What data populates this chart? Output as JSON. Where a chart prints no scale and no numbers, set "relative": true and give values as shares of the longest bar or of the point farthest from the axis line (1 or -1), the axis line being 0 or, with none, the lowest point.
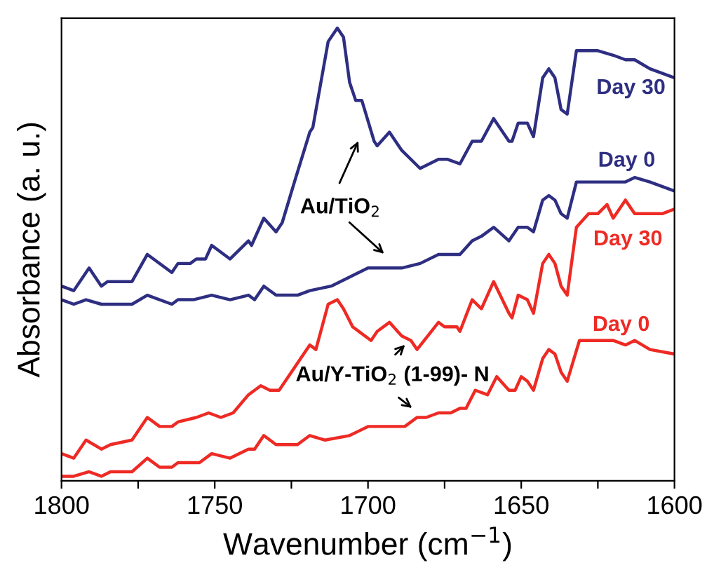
{
  "chart_data": {
    "type": "line",
    "relative": true,
    "xlabel": "Wavenumber (cm$^{−1}$)",
    "ylabel": "Absorbance (a. u.)",
    "xlim": [
      1800,
      1600
    ],
    "xticks": [
      1800,
      {
        "value": 1775,
        "label": null
      },
      1750,
      {
        "value": 1725,
        "label": null
      },
      1700,
      {
        "value": 1675,
        "label": null
      },
      1650,
      {
        "value": 1625,
        "label": null
      },
      1600
    ],
    "tick_labels": "x",
    "grid": false,
    "legend": false,
    "marker": "none",
    "line_style": "solid",
    "annotations": [
      "Au/TiO$_{2}$",
      "Au/Y-TiO$_{2}$ (1-99)- N"
    ],
    "series": [
      {
        "name": "Day 30",
        "color": "#2e2e82",
        "x": [
          1800,
          1796,
          1791,
          1787,
          1785,
          1777,
          1772,
          1764,
          1762,
          1758,
          1756,
          1753,
          1751,
          1745,
          1739,
          1738,
          1734,
          1730,
          1728,
          1724,
          1719,
          1718,
          1713,
          1710,
          1708,
          1706,
          1704,
          1702,
          1698,
          1697,
          1693,
          1689,
          1683,
          1680,
          1677,
          1674,
          1670,
          1666,
          1663,
          1659,
          1654,
          1653,
          1651,
          1648,
          1646,
          1643,
          1641,
          1639,
          1637,
          1635,
          1632,
          1629,
          1625,
          1620,
          1616,
          1613,
          1608,
          1600
        ],
        "values": [
          0.43,
          0.42,
          0.47,
          0.43,
          0.44,
          0.44,
          0.5,
          0.46,
          0.48,
          0.48,
          0.49,
          0.49,
          0.52,
          0.49,
          0.53,
          0.52,
          0.58,
          0.55,
          0.57,
          0.66,
          0.77,
          0.78,
          0.97,
          1.0,
          0.98,
          0.88,
          0.84,
          0.84,
          0.75,
          0.74,
          0.77,
          0.73,
          0.69,
          0.7,
          0.71,
          0.71,
          0.7,
          0.75,
          0.75,
          0.8,
          0.75,
          0.75,
          0.79,
          0.79,
          0.76,
          0.89,
          0.91,
          0.89,
          0.82,
          0.81,
          0.95,
          0.95,
          0.95,
          0.94,
          0.93,
          0.93,
          0.91,
          0.89
        ]
      },
      {
        "name": "Day 0",
        "color": "#2e2e82",
        "x": [
          1800,
          1796,
          1792,
          1787,
          1785,
          1777,
          1772,
          1764,
          1762,
          1757,
          1751,
          1745,
          1739,
          1737,
          1734,
          1730,
          1723,
          1719,
          1712,
          1706,
          1700,
          1695,
          1689,
          1683,
          1677,
          1670,
          1666,
          1663,
          1659,
          1654,
          1653,
          1651,
          1648,
          1646,
          1643,
          1641,
          1639,
          1637,
          1635,
          1632,
          1625,
          1619,
          1616,
          1613,
          1608,
          1600
        ],
        "values": [
          0.4,
          0.39,
          0.4,
          0.39,
          0.39,
          0.39,
          0.41,
          0.39,
          0.4,
          0.4,
          0.41,
          0.4,
          0.41,
          0.4,
          0.43,
          0.41,
          0.41,
          0.42,
          0.43,
          0.45,
          0.47,
          0.47,
          0.47,
          0.48,
          0.5,
          0.5,
          0.53,
          0.54,
          0.56,
          0.53,
          0.54,
          0.56,
          0.56,
          0.55,
          0.62,
          0.63,
          0.62,
          0.59,
          0.58,
          0.66,
          0.66,
          0.66,
          0.66,
          0.67,
          0.66,
          0.64
        ]
      },
      {
        "name": "Day 30",
        "color": "#ee2a24",
        "x": [
          1800,
          1796,
          1792,
          1787,
          1784,
          1777,
          1772,
          1768,
          1764,
          1762,
          1756,
          1752,
          1748,
          1744,
          1739,
          1735,
          1732,
          1729,
          1724,
          1719,
          1717,
          1713,
          1710,
          1708,
          1705,
          1701,
          1699,
          1697,
          1693,
          1689,
          1686,
          1684,
          1677,
          1675,
          1671,
          1670,
          1666,
          1663,
          1659,
          1654,
          1653,
          1651,
          1648,
          1646,
          1643,
          1641,
          1639,
          1637,
          1635,
          1632,
          1628,
          1625,
          1622,
          1620,
          1616,
          1613,
          1608,
          1604,
          1600
        ],
        "values": [
          0.06,
          0.05,
          0.09,
          0.07,
          0.08,
          0.09,
          0.14,
          0.12,
          0.12,
          0.13,
          0.14,
          0.15,
          0.14,
          0.15,
          0.19,
          0.21,
          0.2,
          0.2,
          0.25,
          0.3,
          0.29,
          0.39,
          0.4,
          0.38,
          0.34,
          0.32,
          0.31,
          0.33,
          0.35,
          0.32,
          0.31,
          0.29,
          0.35,
          0.34,
          0.34,
          0.33,
          0.4,
          0.38,
          0.44,
          0.37,
          0.36,
          0.41,
          0.4,
          0.37,
          0.48,
          0.5,
          0.48,
          0.43,
          0.41,
          0.56,
          0.59,
          0.59,
          0.61,
          0.58,
          0.62,
          0.59,
          0.59,
          0.59,
          0.6
        ]
      },
      {
        "name": "Day 0",
        "color": "#ee2a24",
        "x": [
          1800,
          1796,
          1791,
          1787,
          1784,
          1777,
          1772,
          1768,
          1764,
          1762,
          1755,
          1751,
          1745,
          1739,
          1737,
          1734,
          1730,
          1723,
          1719,
          1714,
          1706,
          1700,
          1697,
          1693,
          1688,
          1684,
          1681,
          1677,
          1673,
          1670,
          1668,
          1665,
          1661,
          1658,
          1654,
          1652,
          1650,
          1648,
          1646,
          1643,
          1641,
          1639,
          1637,
          1635,
          1631,
          1627,
          1620,
          1616,
          1613,
          1608,
          1600
        ],
        "values": [
          0.01,
          0.01,
          0.02,
          0.01,
          0.02,
          0.02,
          0.05,
          0.03,
          0.03,
          0.04,
          0.04,
          0.06,
          0.05,
          0.07,
          0.07,
          0.1,
          0.08,
          0.08,
          0.1,
          0.09,
          0.1,
          0.12,
          0.12,
          0.12,
          0.12,
          0.14,
          0.14,
          0.15,
          0.15,
          0.16,
          0.16,
          0.2,
          0.19,
          0.23,
          0.2,
          0.2,
          0.23,
          0.22,
          0.2,
          0.27,
          0.29,
          0.28,
          0.24,
          0.22,
          0.31,
          0.31,
          0.31,
          0.3,
          0.31,
          0.29,
          0.28
        ]
      }
    ]
  }
}
